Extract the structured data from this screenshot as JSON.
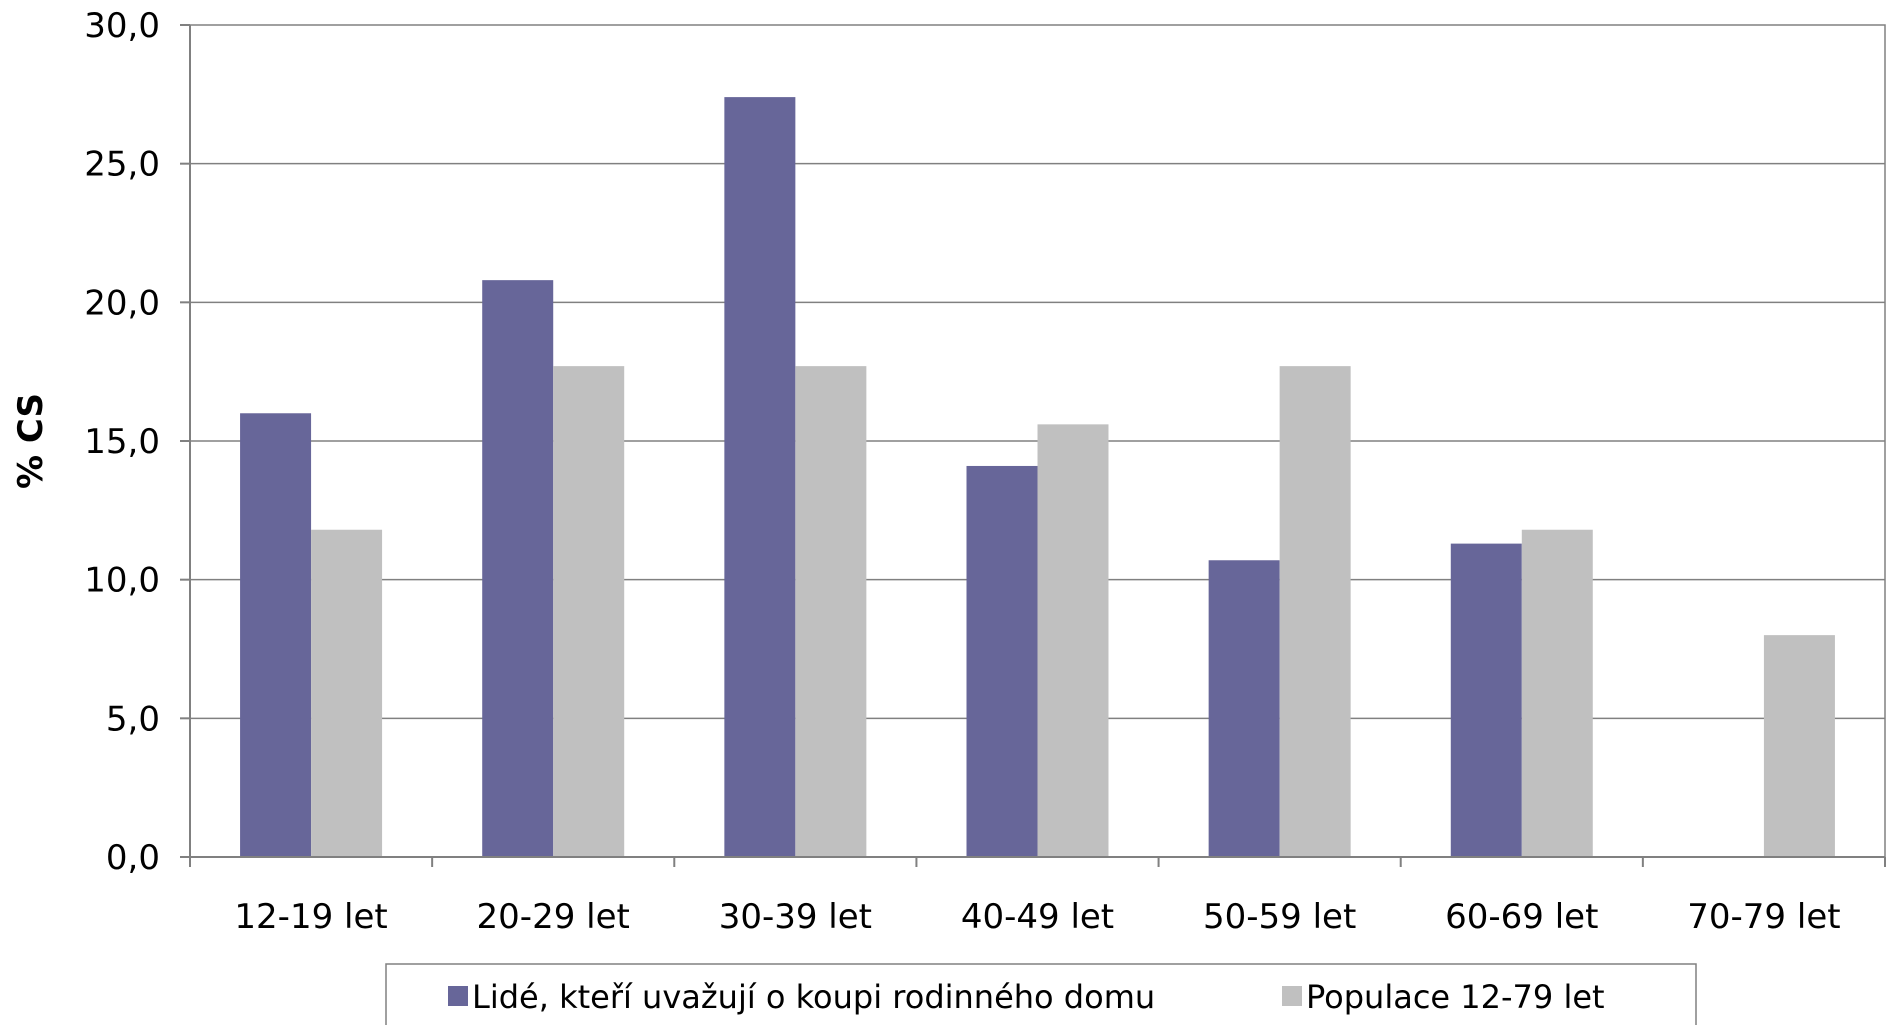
{
  "chart_data": {
    "type": "bar",
    "title": "",
    "xlabel": "",
    "ylabel": "% CS",
    "ylim": [
      0,
      30
    ],
    "ytick_step": 5,
    "ytick_labels": [
      "0,0",
      "5,0",
      "10,0",
      "15,0",
      "20,0",
      "25,0",
      "30,0"
    ],
    "grid": "horizontal",
    "legend_position": "bottom",
    "categories": [
      "12-19 let",
      "20-29 let",
      "30-39 let",
      "40-49 let",
      "50-59 let",
      "60-69 let",
      "70-79 let"
    ],
    "series": [
      {
        "name": "Lidé, kteří uvažují o koupi rodinného domu",
        "color": "#676699",
        "values": [
          16.0,
          20.8,
          27.4,
          14.1,
          10.7,
          11.3,
          0
        ]
      },
      {
        "name": "Populace 12-79 let",
        "color": "#c0c0c0",
        "values": [
          11.8,
          17.7,
          17.7,
          15.6,
          17.7,
          11.8,
          8.0
        ]
      }
    ]
  }
}
